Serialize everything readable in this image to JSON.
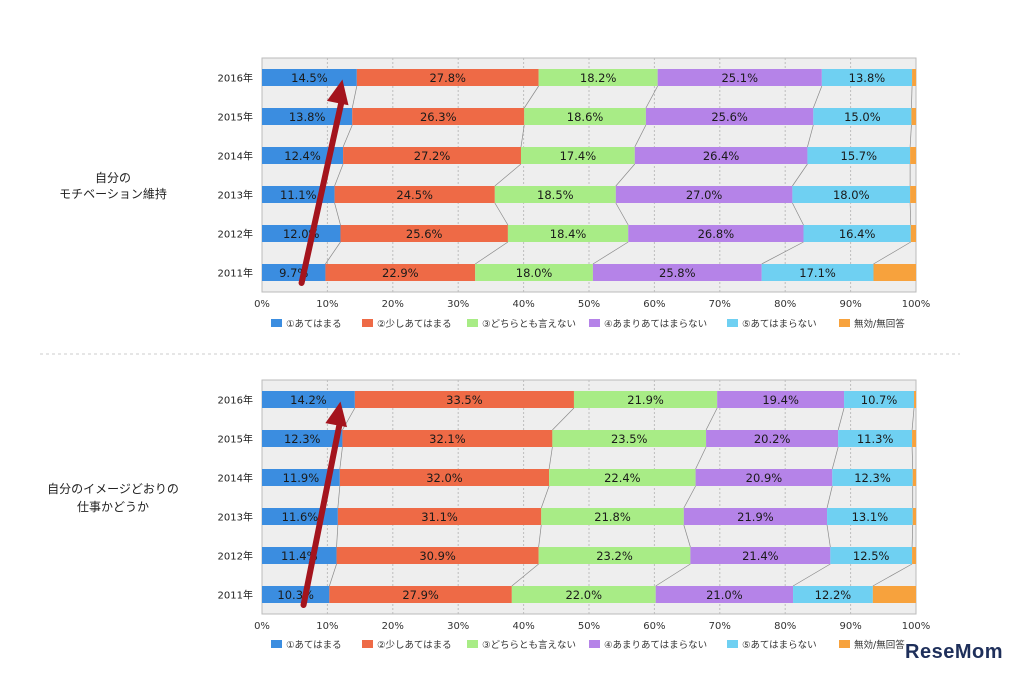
{
  "watermark": "ReseMom",
  "colors": {
    "c1": "#3b8de0",
    "c2": "#ee6a46",
    "c3": "#a8ec86",
    "c4": "#b583e8",
    "c5": "#6fd0f2",
    "c6": "#f7a23d",
    "arrow": "#a4141d",
    "plot_bg": "#eeeeee"
  },
  "chart_data": [
    {
      "type": "bar",
      "orientation": "horizontal",
      "stacked": true,
      "group_label": [
        "自分の",
        "モチベーション維持"
      ],
      "categories": [
        "2016年",
        "2015年",
        "2014年",
        "2013年",
        "2012年",
        "2011年"
      ],
      "series": [
        {
          "name": "①あてはまる",
          "values": [
            14.5,
            13.8,
            12.4,
            11.1,
            12.0,
            9.7
          ]
        },
        {
          "name": "②少しあてはまる",
          "values": [
            27.8,
            26.3,
            27.2,
            24.5,
            25.6,
            22.9
          ]
        },
        {
          "name": "③どちらとも言えない",
          "values": [
            18.2,
            18.6,
            17.4,
            18.5,
            18.4,
            18.0
          ]
        },
        {
          "name": "④あまりあてはまらない",
          "values": [
            25.1,
            25.6,
            26.4,
            27.0,
            26.8,
            25.8
          ]
        },
        {
          "name": "⑤あてはまらない",
          "values": [
            13.8,
            15.0,
            15.7,
            18.0,
            16.4,
            17.1
          ]
        },
        {
          "name": "無効/無回答",
          "values": [
            0.6,
            0.7,
            0.9,
            0.9,
            0.8,
            6.5
          ]
        }
      ],
      "x_ticks": [
        "0%",
        "10%",
        "20%",
        "30%",
        "40%",
        "50%",
        "60%",
        "70%",
        "80%",
        "90%",
        "100%"
      ],
      "xlim": [
        0,
        100
      ],
      "grid": true,
      "legend_position": "bottom",
      "annotation": "upward arrow from 2011 to 2016 on ①あてはまる"
    },
    {
      "type": "bar",
      "orientation": "horizontal",
      "stacked": true,
      "group_label": [
        "自分のイメージどおりの",
        "仕事かどうか"
      ],
      "categories": [
        "2016年",
        "2015年",
        "2014年",
        "2013年",
        "2012年",
        "2011年"
      ],
      "series": [
        {
          "name": "①あてはまる",
          "values": [
            14.2,
            12.3,
            11.9,
            11.6,
            11.4,
            10.3
          ]
        },
        {
          "name": "②少しあてはまる",
          "values": [
            33.5,
            32.1,
            32.0,
            31.1,
            30.9,
            27.9
          ]
        },
        {
          "name": "③どちらとも言えない",
          "values": [
            21.9,
            23.5,
            22.4,
            21.8,
            23.2,
            22.0
          ]
        },
        {
          "name": "④あまりあてはまらない",
          "values": [
            19.4,
            20.2,
            20.9,
            21.9,
            21.4,
            21.0
          ]
        },
        {
          "name": "⑤あてはまらない",
          "values": [
            10.7,
            11.3,
            12.3,
            13.1,
            12.5,
            12.2
          ]
        },
        {
          "name": "無効/無回答",
          "values": [
            0.3,
            0.6,
            0.5,
            0.5,
            0.6,
            6.6
          ]
        }
      ],
      "x_ticks": [
        "0%",
        "10%",
        "20%",
        "30%",
        "40%",
        "50%",
        "60%",
        "70%",
        "80%",
        "90%",
        "100%"
      ],
      "xlim": [
        0,
        100
      ],
      "grid": true,
      "legend_position": "bottom",
      "annotation": "upward arrow from 2011 to 2016 on ①あてはまる"
    }
  ]
}
